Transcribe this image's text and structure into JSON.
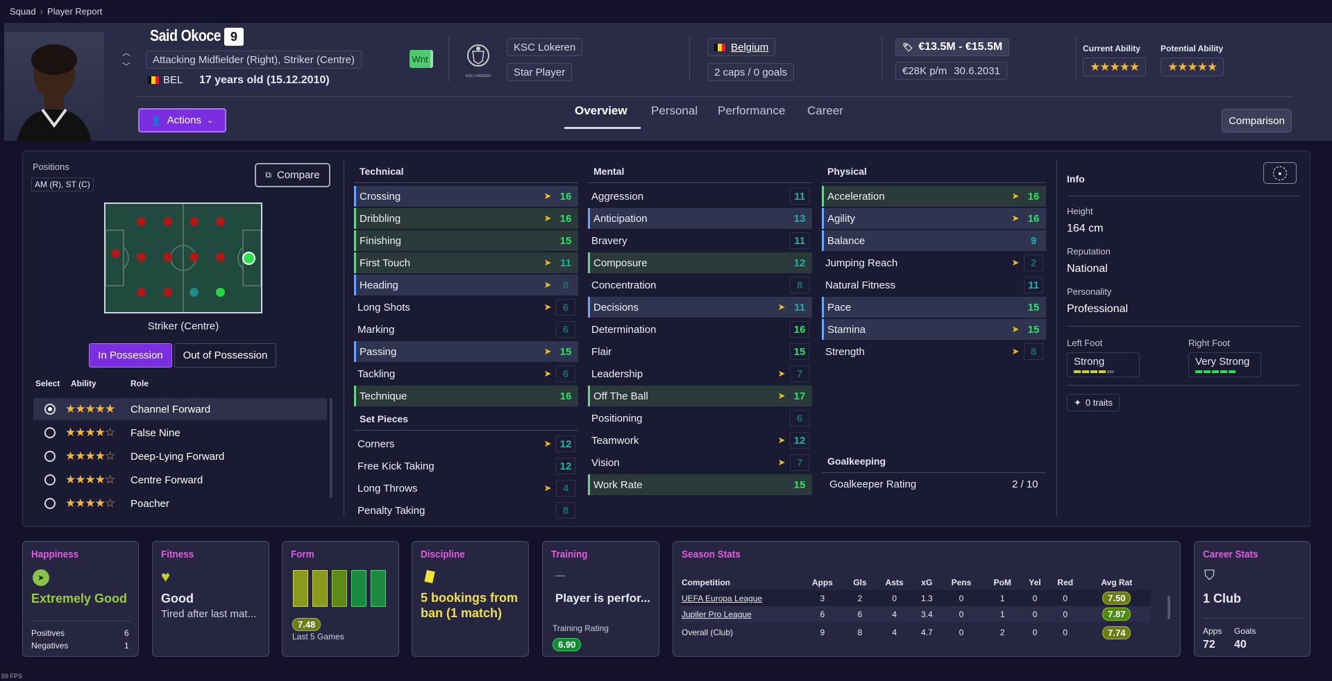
{
  "breadcrumb": {
    "root": "Squad",
    "current": "Player Report"
  },
  "player": {
    "name": "Said Okoce",
    "number": "9",
    "positions_full": "Attacking Midfielder (Right), Striker (Centre)",
    "nation_code": "BEL",
    "age": "17 years old (15.12.2010)",
    "wnt": "Wnt"
  },
  "club": {
    "name": "KSC Lokeren",
    "status": "Star Player",
    "logo_text": "KSC LOKEREN"
  },
  "nation": {
    "name": "Belgium",
    "caps": "2 caps / 0 goals"
  },
  "value": {
    "range": "€13.5M - €15.5M",
    "wage": "€28K p/m",
    "contract": "30.6.2031"
  },
  "ability": {
    "current_label": "Current Ability",
    "potential_label": "Potential Ability",
    "current_stars": 5,
    "potential_stars": 5
  },
  "actions_label": "Actions",
  "tabs": [
    "Overview",
    "Personal",
    "Performance",
    "Career"
  ],
  "comparison_label": "Comparison",
  "positions": {
    "label": "Positions",
    "value": "AM (R), ST (C)",
    "compare_label": "Compare",
    "selected_position": "Striker (Centre)"
  },
  "possession": {
    "in": "In Possession",
    "out": "Out of Possession"
  },
  "roles": {
    "headers": [
      "Select",
      "Ability",
      "Role"
    ],
    "items": [
      {
        "name": "Channel Forward",
        "stars": "★★★★★",
        "selected": true
      },
      {
        "name": "False Nine",
        "stars": "★★★★☆",
        "selected": false
      },
      {
        "name": "Deep-Lying Forward",
        "stars": "★★★★☆",
        "selected": false
      },
      {
        "name": "Centre Forward",
        "stars": "★★★★☆",
        "selected": false
      },
      {
        "name": "Poacher",
        "stars": "★★★★☆",
        "selected": false
      }
    ]
  },
  "technical": {
    "title": "Technical",
    "items": [
      {
        "name": "Crossing",
        "value": "16",
        "arrow": true,
        "hl": "blue"
      },
      {
        "name": "Dribbling",
        "value": "16",
        "arrow": true,
        "hl": "green"
      },
      {
        "name": "Finishing",
        "value": "15",
        "arrow": false,
        "hl": "green"
      },
      {
        "name": "First Touch",
        "value": "11",
        "arrow": true,
        "hl": "green"
      },
      {
        "name": "Heading",
        "value": "8",
        "arrow": true,
        "hl": "blue"
      },
      {
        "name": "Long Shots",
        "value": "6",
        "arrow": true,
        "hl": ""
      },
      {
        "name": "Marking",
        "value": "6",
        "arrow": false,
        "hl": ""
      },
      {
        "name": "Passing",
        "value": "15",
        "arrow": true,
        "hl": "blue"
      },
      {
        "name": "Tackling",
        "value": "6",
        "arrow": true,
        "hl": ""
      },
      {
        "name": "Technique",
        "value": "16",
        "arrow": false,
        "hl": "green"
      }
    ]
  },
  "set_pieces": {
    "title": "Set Pieces",
    "items": [
      {
        "name": "Corners",
        "value": "12",
        "arrow": true,
        "hl": ""
      },
      {
        "name": "Free Kick Taking",
        "value": "12",
        "arrow": false,
        "hl": ""
      },
      {
        "name": "Long Throws",
        "value": "4",
        "arrow": true,
        "hl": ""
      },
      {
        "name": "Penalty Taking",
        "value": "8",
        "arrow": false,
        "hl": ""
      }
    ]
  },
  "mental": {
    "title": "Mental",
    "items": [
      {
        "name": "Aggression",
        "value": "11",
        "arrow": false,
        "hl": ""
      },
      {
        "name": "Anticipation",
        "value": "13",
        "arrow": false,
        "hl": "blue"
      },
      {
        "name": "Bravery",
        "value": "11",
        "arrow": false,
        "hl": ""
      },
      {
        "name": "Composure",
        "value": "12",
        "arrow": false,
        "hl": "green"
      },
      {
        "name": "Concentration",
        "value": "8",
        "arrow": false,
        "hl": ""
      },
      {
        "name": "Decisions",
        "value": "11",
        "arrow": true,
        "hl": "blue"
      },
      {
        "name": "Determination",
        "value": "16",
        "arrow": false,
        "hl": ""
      },
      {
        "name": "Flair",
        "value": "15",
        "arrow": false,
        "hl": ""
      },
      {
        "name": "Leadership",
        "value": "7",
        "arrow": true,
        "hl": ""
      },
      {
        "name": "Off The Ball",
        "value": "17",
        "arrow": true,
        "hl": "green"
      },
      {
        "name": "Positioning",
        "value": "6",
        "arrow": false,
        "hl": ""
      },
      {
        "name": "Teamwork",
        "value": "12",
        "arrow": true,
        "hl": ""
      },
      {
        "name": "Vision",
        "value": "7",
        "arrow": true,
        "hl": ""
      },
      {
        "name": "Work Rate",
        "value": "15",
        "arrow": false,
        "hl": "green"
      }
    ]
  },
  "physical": {
    "title": "Physical",
    "items": [
      {
        "name": "Acceleration",
        "value": "16",
        "arrow": true,
        "hl": "green"
      },
      {
        "name": "Agility",
        "value": "16",
        "arrow": true,
        "hl": "blue"
      },
      {
        "name": "Balance",
        "value": "9",
        "arrow": false,
        "hl": "blue"
      },
      {
        "name": "Jumping Reach",
        "value": "2",
        "arrow": true,
        "hl": ""
      },
      {
        "name": "Natural Fitness",
        "value": "11",
        "arrow": false,
        "hl": ""
      },
      {
        "name": "Pace",
        "value": "15",
        "arrow": false,
        "hl": "blue"
      },
      {
        "name": "Stamina",
        "value": "15",
        "arrow": true,
        "hl": "blue"
      },
      {
        "name": "Strength",
        "value": "8",
        "arrow": true,
        "hl": ""
      }
    ]
  },
  "goalkeeping": {
    "title": "Goalkeeping",
    "label": "Goalkeeper Rating",
    "value": "2 / 10"
  },
  "info": {
    "title": "Info",
    "height_label": "Height",
    "height": "164 cm",
    "reputation_label": "Reputation",
    "reputation": "National",
    "personality_label": "Personality",
    "personality": "Professional",
    "left_foot_label": "Left Foot",
    "left_foot": "Strong",
    "right_foot_label": "Right Foot",
    "right_foot": "Very Strong",
    "traits": "0 traits"
  },
  "cards": {
    "happiness": {
      "title": "Happiness",
      "value": "Extremely Good",
      "positives_label": "Positives",
      "positives": "6",
      "negatives_label": "Negatives",
      "negatives": "1"
    },
    "fitness": {
      "title": "Fitness",
      "value": "Good",
      "detail": "Tired after last mat..."
    },
    "form": {
      "title": "Form",
      "rating": "7.48",
      "caption": "Last 5 Games"
    },
    "discipline": {
      "title": "Discipline",
      "value": "5 bookings from ban (1 match)"
    },
    "training": {
      "title": "Training",
      "dash": "—",
      "value": "Player is perfor...",
      "rating_label": "Training Rating",
      "rating": "6.90"
    },
    "season": {
      "title": "Season Stats",
      "headers": [
        "Competition",
        "Apps",
        "Gls",
        "Asts",
        "xG",
        "Pens",
        "PoM",
        "Yel",
        "Red",
        "Avg Rat"
      ],
      "rows": [
        [
          "UEFA Europa League",
          "3",
          "2",
          "0",
          "1.3",
          "0",
          "1",
          "0",
          "0",
          "7.50"
        ],
        [
          "Jupiler Pro League",
          "6",
          "6",
          "4",
          "3.4",
          "0",
          "1",
          "0",
          "0",
          "7.87"
        ]
      ],
      "total": [
        "Overall (Club)",
        "9",
        "8",
        "4",
        "4.7",
        "0",
        "2",
        "0",
        "0",
        "7.74"
      ]
    },
    "career": {
      "title": "Career Stats",
      "value": "1 Club",
      "apps_label": "Apps",
      "apps": "72",
      "goals_label": "Goals",
      "goals": "40"
    }
  },
  "fps": "59 FPS"
}
